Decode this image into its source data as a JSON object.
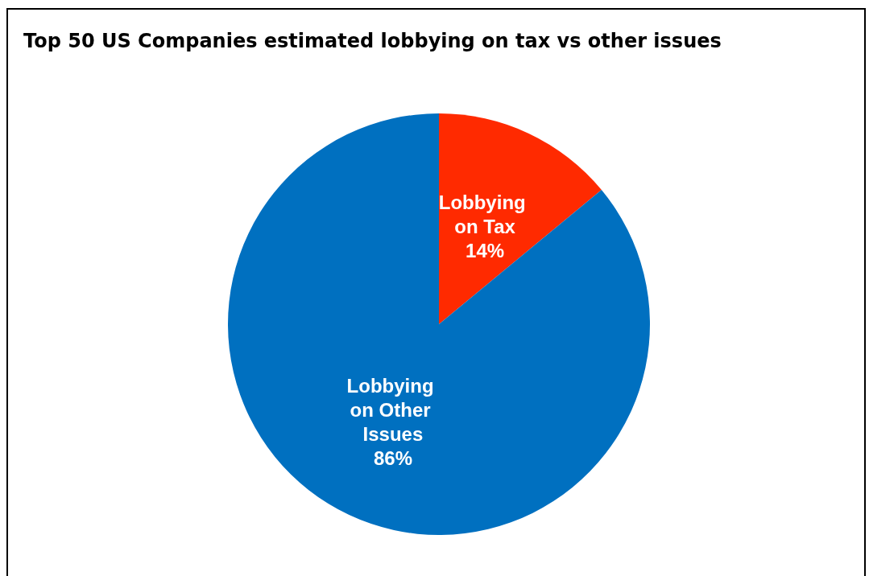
{
  "chart_data": {
    "type": "pie",
    "title": "Top 50 US Companies estimated lobbying on tax vs other issues",
    "categories": [
      "Lobbying on Tax",
      "Lobbying on Other Issues"
    ],
    "values": [
      14,
      86
    ],
    "colors": [
      "#ff2a00",
      "#0070c0"
    ],
    "value_labels": [
      "14%",
      "86%"
    ],
    "legend": false
  }
}
